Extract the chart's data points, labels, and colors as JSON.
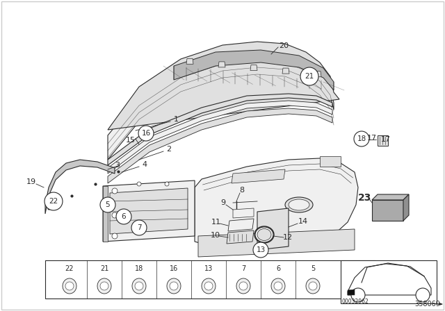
{
  "bg_color": "#ffffff",
  "line_color": "#2a2a2a",
  "fill_light": "#f0f0f0",
  "fill_mid": "#e0e0e0",
  "fill_dark": "#c8c8c8",
  "fill_grille": "#b8b8b8",
  "fill_box23": "#b0b0b0",
  "reference_code": "00032962",
  "part_ref": "358069",
  "bottom_strip_items": [
    "22",
    "21",
    "18",
    "16",
    "13",
    "7",
    "6",
    "5"
  ],
  "bold_numbers": [
    "23"
  ]
}
